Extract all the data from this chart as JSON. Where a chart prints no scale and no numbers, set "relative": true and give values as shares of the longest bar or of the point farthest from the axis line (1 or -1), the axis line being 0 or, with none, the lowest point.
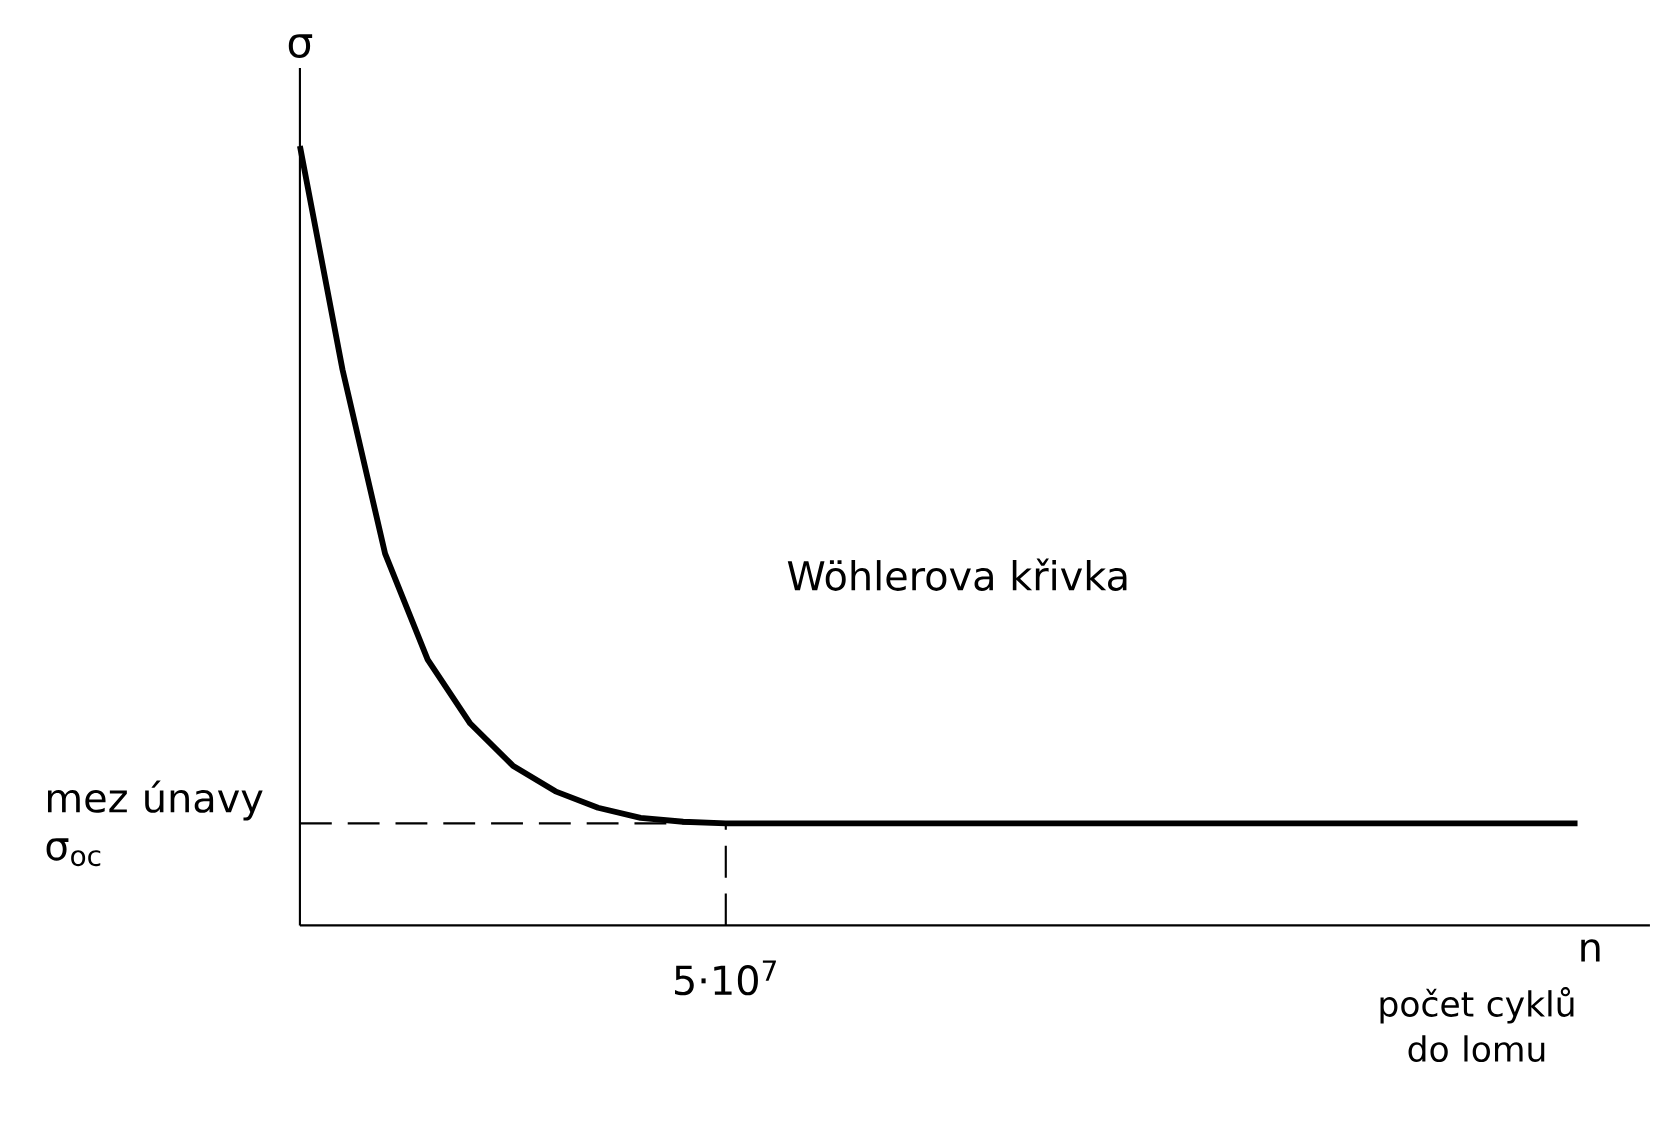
{
  "chart_data": {
    "type": "line",
    "relative": true,
    "ylabel": "σ",
    "xlabel": "n",
    "annotations": [
      "Wöhlerova křivka",
      "5·10$^{7}$",
      "počet cyklů do lomu"
    ],
    "categories": [
      null,
      null,
      null,
      null,
      null,
      null,
      null,
      null,
      null,
      null,
      null,
      null,
      null,
      null,
      null,
      null,
      null,
      null,
      null,
      null,
      null,
      null,
      null,
      null,
      null,
      null,
      null,
      null,
      null,
      null,
      null
    ],
    "series": [
      {
        "color": "#000000",
        "values": [
          1,
          0.713,
          0.477,
          0.341,
          0.259,
          0.205,
          0.172,
          0.151,
          0.138,
          0.133,
          0.131,
          0.131,
          0.131,
          0.131,
          0.131,
          0.131,
          0.131,
          0.131,
          0.131,
          0.131,
          0.131,
          0.131,
          0.131,
          0.131,
          0.131,
          0.131,
          0.131,
          0.131,
          0.131,
          0.131,
          0.131
        ]
      }
    ],
    "ref_lines": [
      {
        "axis": "y",
        "value": 0.131,
        "label": "mez únavy σ$_{oc}$",
        "line_style": "dashed",
        "color": "#000000"
      }
    ],
    "marker": "none",
    "line_style": "solid",
    "grid": false
  }
}
